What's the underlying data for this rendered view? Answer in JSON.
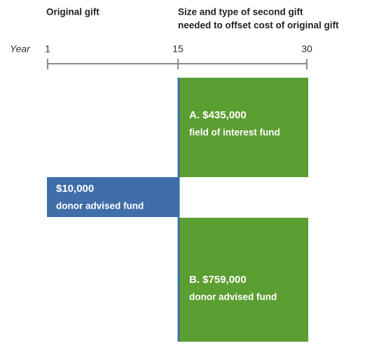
{
  "header": {
    "left": "Original gift",
    "right": [
      "Size and type of second gift",
      "needed to offset cost of original gift"
    ]
  },
  "timeline": {
    "label": "Year",
    "ticks": [
      "1",
      "15",
      "30"
    ]
  },
  "boxes": [
    {
      "title": "A. $435,000",
      "subtitle": "field of interest fund"
    },
    {
      "title": "$10,000",
      "subtitle": "donor advised fund"
    },
    {
      "title": "B. $759,000",
      "subtitle": "donor advised fund"
    }
  ]
}
